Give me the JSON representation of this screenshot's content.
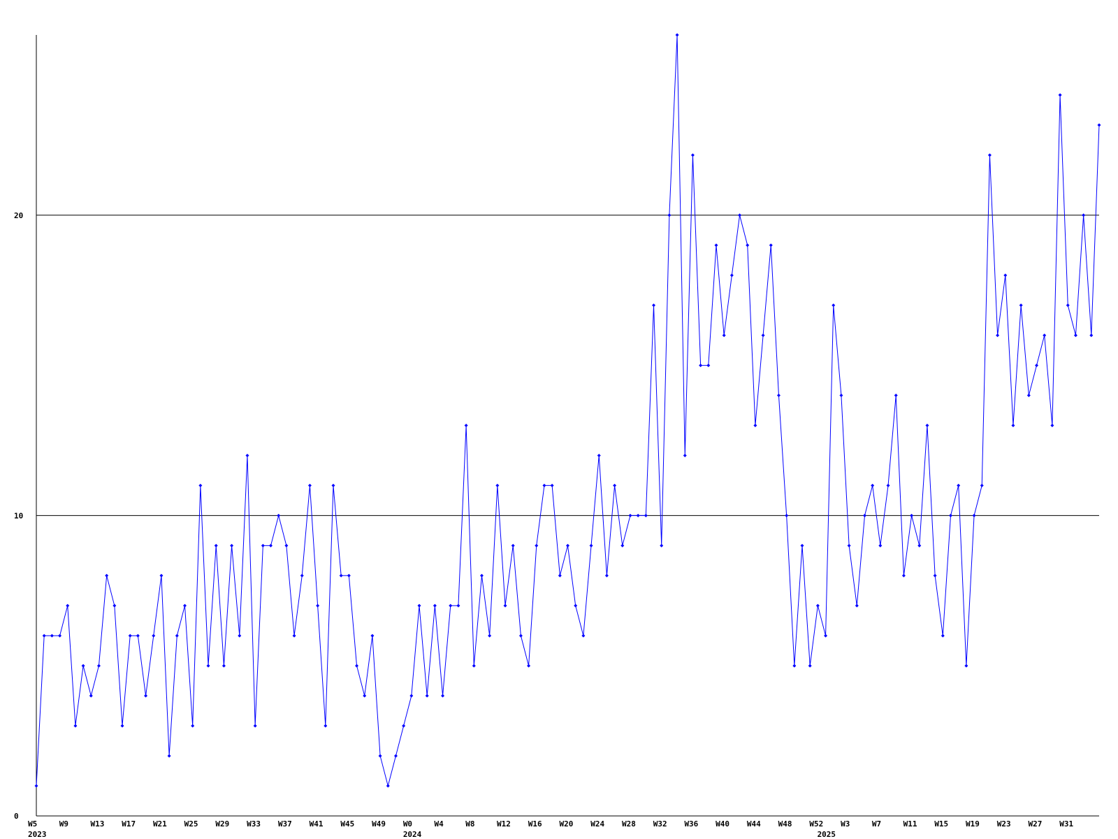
{
  "chart_data": {
    "type": "line",
    "categories": [
      "W5",
      null,
      null,
      null,
      "W9",
      null,
      null,
      null,
      "W13",
      null,
      null,
      null,
      "W17",
      null,
      null,
      null,
      "W21",
      null,
      null,
      null,
      "W25",
      null,
      null,
      null,
      "W29",
      null,
      null,
      null,
      "W33",
      null,
      null,
      null,
      "W37",
      null,
      null,
      null,
      "W41",
      null,
      null,
      null,
      "W45",
      null,
      null,
      null,
      "W49",
      null,
      null,
      null,
      "W0",
      null,
      null,
      null,
      "W4",
      null,
      null,
      null,
      "W8",
      null,
      null,
      null,
      "W12",
      null,
      null,
      null,
      "W16",
      null,
      null,
      null,
      "W20",
      null,
      null,
      null,
      "W24",
      null,
      null,
      null,
      "W28",
      null,
      null,
      null,
      "W32",
      null,
      null,
      null,
      "W36",
      null,
      null,
      null,
      "W40",
      null,
      null,
      null,
      "W44",
      null,
      null,
      null,
      "W48",
      null,
      null,
      null,
      "W52",
      null,
      null,
      null,
      "W3",
      null,
      null,
      null,
      "W7",
      null,
      null,
      null,
      "W11",
      null,
      null,
      null,
      "W15",
      null,
      null,
      null,
      "W19",
      null,
      null,
      null,
      "W23",
      null,
      null,
      null,
      "W27",
      null,
      null,
      null,
      "W31",
      null,
      null,
      null,
      null
    ],
    "year_labels": [
      "2023",
      null,
      null,
      null,
      null,
      null,
      null,
      null,
      null,
      null,
      null,
      null,
      null,
      null,
      null,
      null,
      null,
      null,
      null,
      null,
      null,
      null,
      null,
      null,
      null,
      null,
      null,
      null,
      null,
      null,
      null,
      null,
      null,
      null,
      null,
      null,
      null,
      null,
      null,
      null,
      null,
      null,
      null,
      null,
      null,
      null,
      null,
      null,
      "2024",
      null,
      null,
      null,
      null,
      null,
      null,
      null,
      null,
      null,
      null,
      null,
      null,
      null,
      null,
      null,
      null,
      null,
      null,
      null,
      null,
      null,
      null,
      null,
      null,
      null,
      null,
      null,
      null,
      null,
      null,
      null,
      null,
      null,
      null,
      null,
      null,
      null,
      null,
      null,
      null,
      null,
      null,
      null,
      null,
      null,
      null,
      null,
      null,
      null,
      null,
      null,
      null,
      "2025",
      null,
      null,
      null,
      null,
      null,
      null,
      null,
      null,
      null,
      null,
      null,
      null,
      null,
      null,
      null,
      null,
      null,
      null,
      null,
      null,
      null,
      null,
      null,
      null,
      null,
      null,
      null,
      null,
      null,
      null,
      null,
      null,
      null,
      null
    ],
    "series": [
      {
        "color": "#0000ff",
        "values": [
          1,
          6,
          6,
          6,
          7,
          3,
          5,
          4,
          5,
          8,
          7,
          3,
          6,
          6,
          4,
          6,
          8,
          2,
          6,
          7,
          3,
          11,
          5,
          9,
          5,
          9,
          6,
          12,
          3,
          9,
          9,
          10,
          9,
          6,
          8,
          11,
          7,
          3,
          11,
          8,
          8,
          5,
          4,
          6,
          2,
          1,
          2,
          3,
          4,
          7,
          4,
          7,
          4,
          7,
          7,
          13,
          5,
          8,
          6,
          11,
          7,
          9,
          6,
          5,
          9,
          11,
          11,
          8,
          9,
          7,
          6,
          9,
          12,
          8,
          11,
          9,
          10,
          10,
          10,
          17,
          9,
          20,
          26,
          12,
          22,
          15,
          15,
          19,
          16,
          18,
          20,
          19,
          13,
          16,
          19,
          14,
          10,
          5,
          9,
          5,
          7,
          6,
          17,
          14,
          9,
          7,
          10,
          11,
          9,
          11,
          14,
          8,
          10,
          9,
          13,
          8,
          6,
          10,
          11,
          5,
          10,
          11,
          22,
          16,
          18,
          13,
          17,
          14,
          15,
          16,
          13,
          24,
          17,
          16,
          20,
          16,
          23
        ]
      }
    ],
    "ylim": [
      0,
      26
    ],
    "yticks": [
      0,
      10,
      20
    ],
    "grid": true
  }
}
